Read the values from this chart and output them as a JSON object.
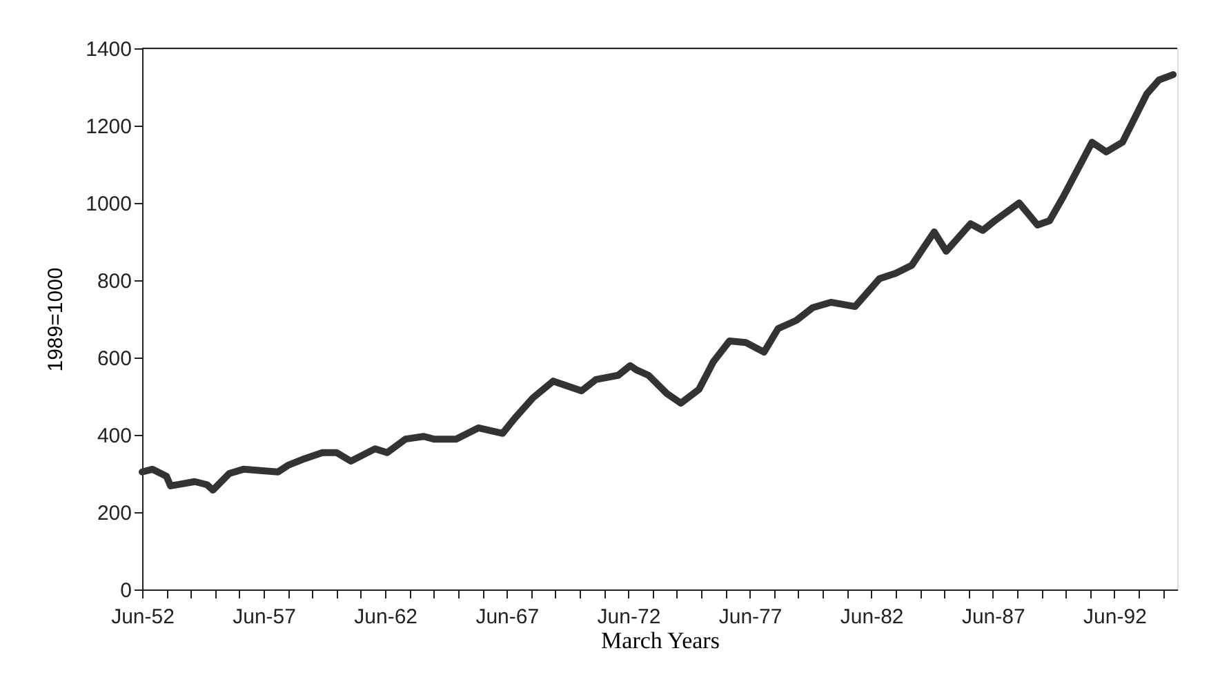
{
  "chart_data": {
    "type": "line",
    "xlabel": "March Years",
    "ylabel": "1989=1000",
    "x": [
      "1952-06",
      "1952-11",
      "1953-06",
      "1953-08",
      "1954-08",
      "1955-02",
      "1955-05",
      "1956-01",
      "1956-08",
      "1958-01",
      "1958-06",
      "1959-01",
      "1959-11",
      "1960-06",
      "1961-01",
      "1962-01",
      "1962-07",
      "1963-04",
      "1964-01",
      "1964-06",
      "1965-05",
      "1966-04",
      "1967-04",
      "1967-10",
      "1968-07",
      "1969-05",
      "1970-07",
      "1971-02",
      "1972-01",
      "1972-07",
      "1972-10",
      "1973-04",
      "1974-01",
      "1974-08",
      "1975-05",
      "1975-12",
      "1976-08",
      "1977-04",
      "1978-01",
      "1978-08",
      "1979-05",
      "1980-01",
      "1980-10",
      "1981-10",
      "1982-10",
      "1983-06",
      "1984-02",
      "1985-01",
      "1985-07",
      "1986-07",
      "1987-01",
      "1987-07",
      "1988-07",
      "1989-04",
      "1989-10",
      "1990-05",
      "1991-07",
      "1992-02",
      "1992-10",
      "1993-10",
      "1994-04",
      "1994-11"
    ],
    "series": [
      {
        "color": "#333333",
        "values": [
          304,
          311,
          293,
          268,
          279,
          271,
          257,
          300,
          311,
          304,
          321,
          336,
          354,
          354,
          332,
          364,
          354,
          389,
          396,
          389,
          389,
          418,
          404,
          443,
          496,
          539,
          514,
          543,
          554,
          579,
          568,
          554,
          507,
          482,
          518,
          589,
          643,
          639,
          614,
          675,
          696,
          729,
          743,
          732,
          804,
          818,
          839,
          925,
          875,
          946,
          929,
          954,
          1000,
          943,
          954,
          1018,
          1157,
          1132,
          1157,
          1282,
          1318,
          1332
        ]
      }
    ],
    "xlim": [
      "1952-06",
      "1995-01"
    ],
    "xticks": [
      {
        "value": "1952-06",
        "label": "Jun-52"
      },
      {
        "value": "1953-06",
        "label": null
      },
      {
        "value": "1954-06",
        "label": null
      },
      {
        "value": "1955-06",
        "label": null
      },
      {
        "value": "1956-06",
        "label": null
      },
      {
        "value": "1957-06",
        "label": "Jun-57"
      },
      {
        "value": "1958-06",
        "label": null
      },
      {
        "value": "1959-06",
        "label": null
      },
      {
        "value": "1960-06",
        "label": null
      },
      {
        "value": "1961-06",
        "label": null
      },
      {
        "value": "1962-06",
        "label": "Jun-62"
      },
      {
        "value": "1963-06",
        "label": null
      },
      {
        "value": "1964-06",
        "label": null
      },
      {
        "value": "1965-06",
        "label": null
      },
      {
        "value": "1966-06",
        "label": null
      },
      {
        "value": "1967-06",
        "label": "Jun-67"
      },
      {
        "value": "1968-06",
        "label": null
      },
      {
        "value": "1969-06",
        "label": null
      },
      {
        "value": "1970-06",
        "label": null
      },
      {
        "value": "1971-06",
        "label": null
      },
      {
        "value": "1972-06",
        "label": "Jun-72"
      },
      {
        "value": "1973-06",
        "label": null
      },
      {
        "value": "1974-06",
        "label": null
      },
      {
        "value": "1975-06",
        "label": null
      },
      {
        "value": "1976-06",
        "label": null
      },
      {
        "value": "1977-06",
        "label": "Jun-77"
      },
      {
        "value": "1978-06",
        "label": null
      },
      {
        "value": "1979-06",
        "label": null
      },
      {
        "value": "1980-06",
        "label": null
      },
      {
        "value": "1981-06",
        "label": null
      },
      {
        "value": "1982-06",
        "label": "Jun-82"
      },
      {
        "value": "1983-06",
        "label": null
      },
      {
        "value": "1984-06",
        "label": null
      },
      {
        "value": "1985-06",
        "label": null
      },
      {
        "value": "1986-06",
        "label": null
      },
      {
        "value": "1987-06",
        "label": "Jun-87"
      },
      {
        "value": "1988-06",
        "label": null
      },
      {
        "value": "1989-06",
        "label": null
      },
      {
        "value": "1990-06",
        "label": null
      },
      {
        "value": "1991-06",
        "label": null
      },
      {
        "value": "1992-06",
        "label": "Jun-92"
      },
      {
        "value": "1993-06",
        "label": null
      },
      {
        "value": "1994-06",
        "label": null
      }
    ],
    "ylim": [
      0,
      1400
    ],
    "yticks": [
      0,
      200,
      400,
      600,
      800,
      1000,
      1200,
      1400
    ],
    "grid": false,
    "marker": "none",
    "line_style": "solid"
  }
}
